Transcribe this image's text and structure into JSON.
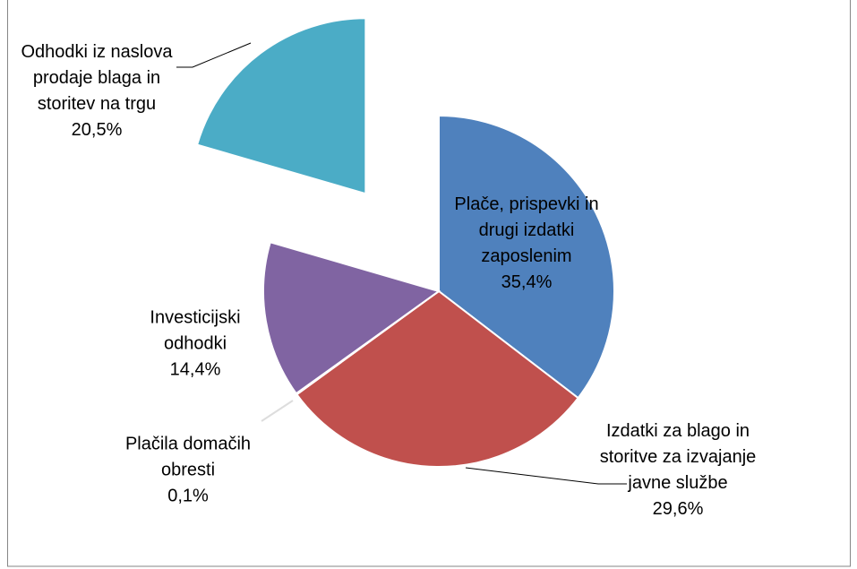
{
  "chart_data": {
    "type": "pie",
    "categories": [
      "Plače, prispevki in drugi izdatki zaposlenim",
      "Izdatki za blago in storitve za izvajanje javne službe",
      "Plačila domačih obresti",
      "Investicijski odhodki",
      "Odhodki iz naslova prodaje blaga in storitev na trgu"
    ],
    "values": [
      35.4,
      29.6,
      0.1,
      14.4,
      20.5
    ],
    "value_labels": [
      "35,4%",
      "29,6%",
      "0,1%",
      "14,4%",
      "20,5%"
    ],
    "colors": [
      "#4f81bd",
      "#c0504d",
      "#9bbb59",
      "#8064a2",
      "#4bacc6"
    ],
    "exploded": [
      false,
      false,
      false,
      false,
      true
    ]
  }
}
